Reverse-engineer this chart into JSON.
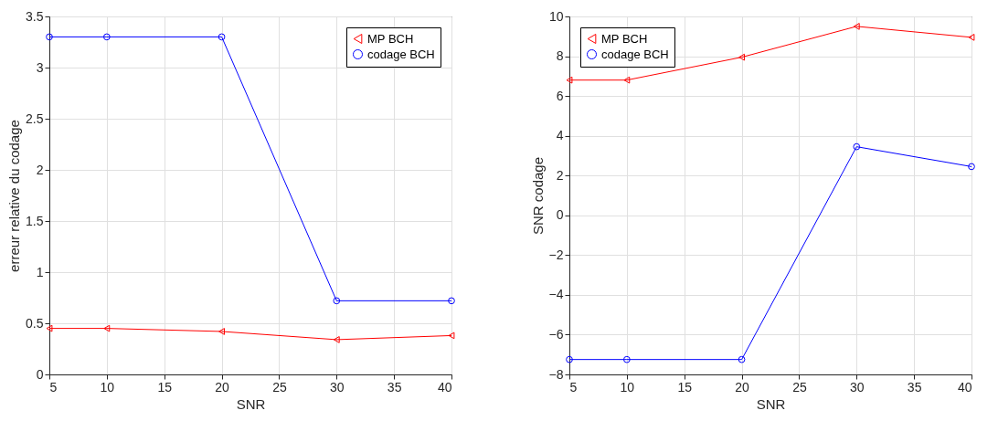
{
  "chart_data": [
    {
      "type": "line",
      "xlabel": "SNR",
      "ylabel": "erreur relative du codage",
      "x": [
        5,
        10,
        20,
        30,
        40
      ],
      "xlim": [
        5,
        40
      ],
      "xticks": [
        5,
        10,
        15,
        20,
        25,
        30,
        35,
        40
      ],
      "ylim": [
        0,
        3.5
      ],
      "yticks": [
        0,
        0.5,
        1,
        1.5,
        2,
        2.5,
        3,
        3.5
      ],
      "grid": true,
      "legend": "top right",
      "line_style": "solid",
      "series": [
        {
          "name": "MP BCH",
          "color": "#ff0000",
          "marker": "triangle",
          "values": [
            0.45,
            0.45,
            0.42,
            0.34,
            0.38
          ]
        },
        {
          "name": "codage BCH",
          "color": "#0000ff",
          "marker": "circle",
          "values": [
            3.3,
            3.3,
            3.3,
            0.72,
            0.72
          ]
        }
      ]
    },
    {
      "type": "line",
      "xlabel": "SNR",
      "ylabel": "SNR codage",
      "x": [
        5,
        10,
        20,
        30,
        40
      ],
      "xlim": [
        5,
        40
      ],
      "xticks": [
        5,
        10,
        15,
        20,
        25,
        30,
        35,
        40
      ],
      "ylim": [
        -8,
        10
      ],
      "yticks": [
        -8,
        -6,
        -4,
        -2,
        0,
        2,
        4,
        6,
        8,
        10
      ],
      "grid": true,
      "legend": "top left",
      "line_style": "solid",
      "series": [
        {
          "name": "MP BCH",
          "color": "#ff0000",
          "marker": "triangle",
          "values": [
            6.8,
            6.8,
            7.95,
            9.5,
            8.95
          ]
        },
        {
          "name": "codage BCH",
          "color": "#0000ff",
          "marker": "circle",
          "values": [
            -7.25,
            -7.25,
            -7.25,
            3.45,
            2.45
          ]
        }
      ]
    }
  ]
}
